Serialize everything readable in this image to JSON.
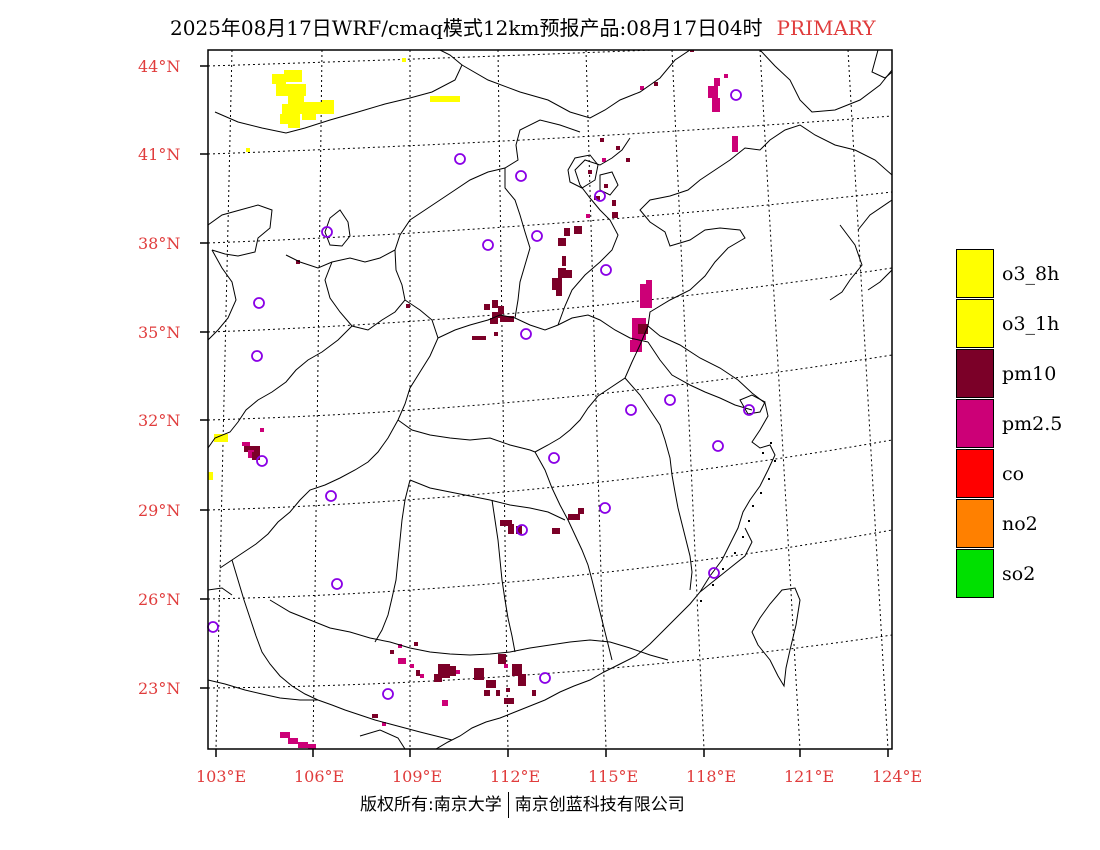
{
  "title": {
    "text": "2025年08月17日WRF/cmaq模式12km预报产品:08月17日04时",
    "tag": "PRIMARY"
  },
  "map": {
    "lat_labels": [
      "44°N",
      "41°N",
      "38°N",
      "35°N",
      "32°N",
      "29°N",
      "26°N",
      "23°N"
    ],
    "lon_labels": [
      "103°E",
      "106°E",
      "109°E",
      "112°E",
      "115°E",
      "118°E",
      "121°E",
      "124°E"
    ],
    "colors": {
      "o3_8h": "#ffff00",
      "o3_1h": "#ffff00",
      "pm10": "#7b0028",
      "pm25": "#cc0077",
      "co": "#ff0000",
      "no2": "#ff8000",
      "so2": "#00e000",
      "station": "#8a00e6",
      "tick_label": "#e03c3c"
    }
  },
  "legend": {
    "items": [
      {
        "label": "o3_8h",
        "color": "#ffff00"
      },
      {
        "label": "o3_1h",
        "color": "#ffff00"
      },
      {
        "label": "pm10",
        "color": "#7b0028"
      },
      {
        "label": "pm2.5",
        "color": "#cc0077"
      },
      {
        "label": "co",
        "color": "#ff0000"
      },
      {
        "label": "no2",
        "color": "#ff8000"
      },
      {
        "label": "so2",
        "color": "#00e000"
      }
    ]
  },
  "footer": {
    "left": "版权所有:南京大学",
    "right": "南京创蓝科技有限公司"
  }
}
